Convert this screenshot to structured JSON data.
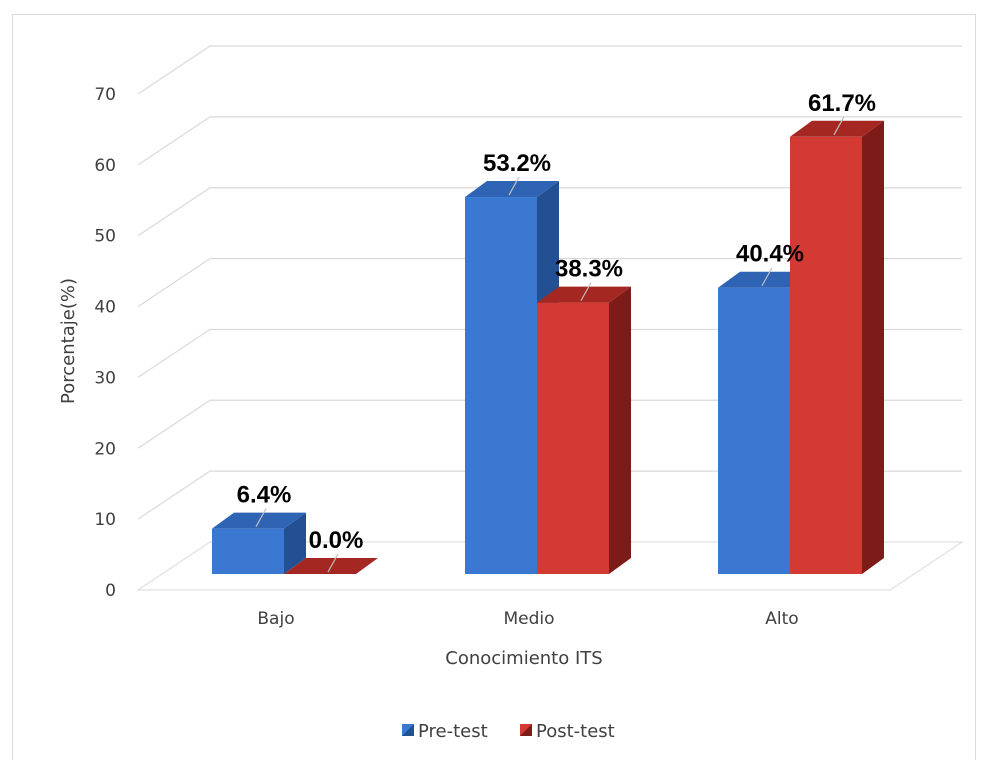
{
  "chart_data": {
    "type": "bar",
    "style": "3d-clustered",
    "categories": [
      "Bajo",
      "Medio",
      "Alto"
    ],
    "series": [
      {
        "name": "Pre-test",
        "values": [
          6.4,
          53.2,
          40.4
        ],
        "labels": [
          "6.4%",
          "53.2%",
          "40.4%"
        ],
        "color": "#3b78d1",
        "side_color": "#234f93",
        "top_color": "#2f64b5"
      },
      {
        "name": "Post-test",
        "values": [
          0.0,
          38.3,
          61.7
        ],
        "labels": [
          "0.0%",
          "38.3%",
          "61.7%"
        ],
        "color": "#d33a34",
        "side_color": "#7d1b18",
        "top_color": "#a42722"
      }
    ],
    "ylabel": "Porcentaje(%)",
    "xlabel": "Conocimiento ITS",
    "ylim": [
      0,
      70
    ],
    "yticks": [
      "0",
      "10",
      "20",
      "30",
      "40",
      "50",
      "60",
      "70"
    ],
    "grid": true,
    "legend_position": "bottom"
  }
}
